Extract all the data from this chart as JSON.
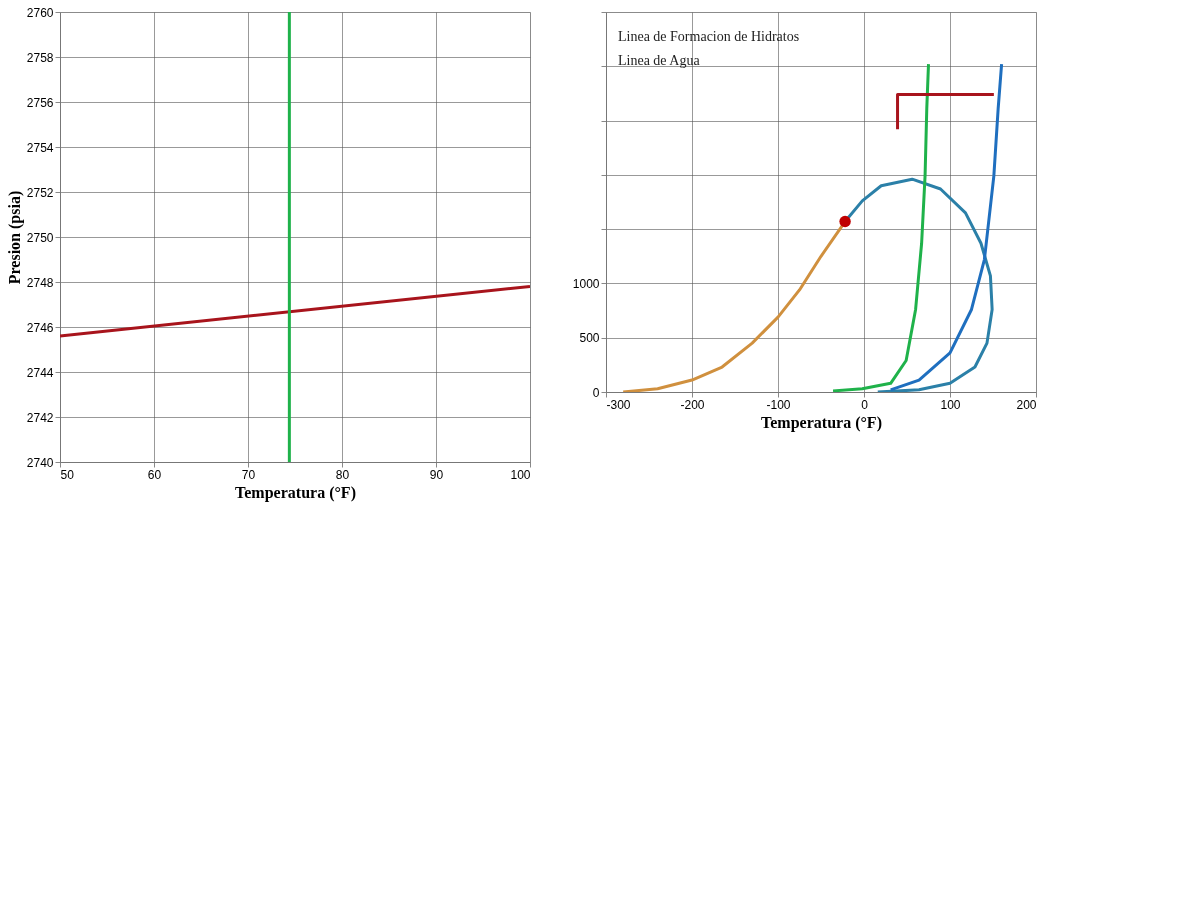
{
  "chart_data": [
    {
      "type": "line",
      "xlabel": "Temperatura (°F)",
      "ylabel": "Presion (psia)",
      "xlim": [
        50,
        100
      ],
      "ylim": [
        2740,
        2760
      ],
      "xticks": [
        50,
        60,
        70,
        80,
        90,
        100
      ],
      "yticks": [
        2740,
        2742,
        2744,
        2746,
        2748,
        2750,
        2752,
        2754,
        2756,
        2758,
        2760
      ],
      "grid": true,
      "line_style": "solid",
      "series": [
        {
          "color": "#a8141c",
          "x": [
            50,
            100
          ],
          "values": [
            2745.6,
            2747.8
          ]
        },
        {
          "color": "#1fb24a",
          "x": [
            74.4,
            74.4
          ],
          "values": [
            2740,
            2760
          ]
        }
      ]
    },
    {
      "type": "line",
      "xlabel": "Temperatura (°F)",
      "xlim": [
        -300,
        200
      ],
      "ylim": [
        0,
        3500
      ],
      "xticks": [
        -300,
        -200,
        -100,
        0,
        100,
        200
      ],
      "yticks": [
        0,
        500,
        1000,
        {
          "value": 1500,
          "label": null
        },
        {
          "value": 2000,
          "label": null
        },
        {
          "value": 2500,
          "label": null
        },
        {
          "value": 3000,
          "label": null
        },
        {
          "value": 3500,
          "label": null
        }
      ],
      "grid": true,
      "line_style": "solid",
      "annotations": [
        "Linea de Formacion de Hidratos",
        "Linea de Agua"
      ],
      "series": [
        {
          "color": "#d0903e",
          "x": [
            -280,
            -240,
            -200,
            -165,
            -130,
            -100,
            -75,
            -50,
            -22
          ],
          "values": [
            0,
            30,
            110,
            230,
            450,
            690,
            940,
            1250,
            1570
          ]
        },
        {
          "color": "#2b80a8",
          "x": [
            -22,
            -2,
            20,
            56,
            89,
            118,
            136,
            147,
            149,
            143,
            129,
            100,
            64,
            16
          ],
          "values": [
            1570,
            1760,
            1900,
            1960,
            1870,
            1650,
            1370,
            1070,
            760,
            450,
            230,
            80,
            20,
            0
          ]
        },
        {
          "color": "#1fb24a",
          "x": [
            -36,
            -2,
            31,
            49,
            60,
            67,
            71,
            73,
            75
          ],
          "values": [
            10,
            30,
            80,
            290,
            760,
            1370,
            1990,
            2610,
            3020
          ]
        },
        {
          "color": "#1f6fbf",
          "x": [
            31,
            64,
            100,
            125,
            140,
            151,
            156,
            160
          ],
          "values": [
            20,
            110,
            360,
            760,
            1220,
            1990,
            2610,
            3020
          ]
        },
        {
          "color": "#a8141c",
          "x": [
            39,
            39,
            151
          ],
          "values": [
            2420,
            2740,
            2740
          ]
        },
        {
          "type": "scatter",
          "marker": "circle",
          "color": "#c00000",
          "x": [
            -22
          ],
          "values": [
            1570
          ]
        }
      ]
    }
  ]
}
